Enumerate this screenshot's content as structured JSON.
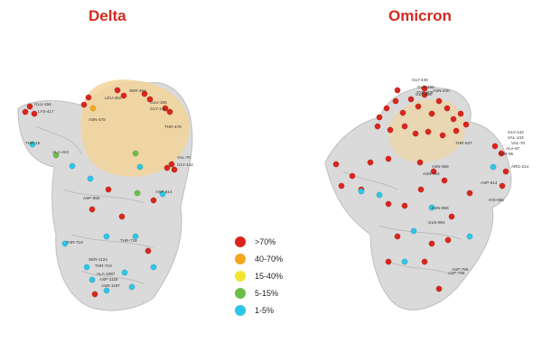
{
  "panels": [
    {
      "title": "Delta",
      "labels": [
        "GLU-156",
        "LYS-417",
        "ASN-478",
        "SER-494",
        "GLU-156",
        "GLY-142",
        "THR-19",
        "LEU-452",
        "ALA-222",
        "THR-478",
        "VAL-70",
        "GLY-142",
        "ASP-614",
        "ASP-950",
        "THR-719",
        "THR-716",
        "SER-1124",
        "THR-719",
        "ALA-1087",
        "ASP-1118",
        "ASN-1187"
      ]
    },
    {
      "title": "Omicron",
      "labels": [
        "GLY-446",
        "GLN-498",
        "TYR-505",
        "ASN-440",
        "GLY-496",
        "GLY-142",
        "VAL-143",
        "VAL-70",
        "ALA-67",
        "THR-95",
        "THR-547",
        "ARG-214",
        "ASN-969",
        "ASN-764",
        "ASP-796",
        "ASN-856",
        "GLN-954",
        "ASP-614",
        "HIS-655",
        "ASP-796"
      ]
    }
  ],
  "legend": [
    {
      "label": ">70%",
      "color": "#d9261c"
    },
    {
      "label": "40-70%",
      "color": "#f2a71d"
    },
    {
      "label": "15-40%",
      "color": "#f4e533"
    },
    {
      "label": "5-15%",
      "color": "#6cbf46"
    },
    {
      "label": "1-5%",
      "color": "#2ec6e6"
    }
  ],
  "colors": {
    "title": "#d42a1e",
    "protein_surface": "#d6d6d6",
    "rbd_highlight": "#f3d49a"
  }
}
